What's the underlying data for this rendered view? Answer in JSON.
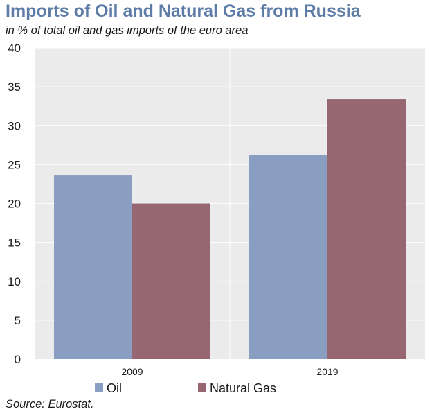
{
  "header": {
    "title": "Imports of Oil and Natural Gas from Russia",
    "subtitle": "in % of total oil and gas imports of the euro area"
  },
  "footer": {
    "source": "Source: Eurostat."
  },
  "colors": {
    "oil": "#8a9ec2",
    "natural_gas": "#966671",
    "plot_background": "#ebebeb",
    "gridline": "#ffffff",
    "title": "#5d7ca6"
  },
  "chart_data": {
    "type": "bar",
    "categories": [
      "2009",
      "2019"
    ],
    "series": [
      {
        "name": "Oil",
        "values": [
          23.6,
          26.2
        ]
      },
      {
        "name": "Natural Gas",
        "values": [
          20.0,
          33.4
        ]
      }
    ],
    "ylim": [
      0,
      40
    ],
    "yticks": [
      0,
      5,
      10,
      15,
      20,
      25,
      30,
      35,
      40
    ],
    "grid": true,
    "legend_position": "bottom-left"
  }
}
